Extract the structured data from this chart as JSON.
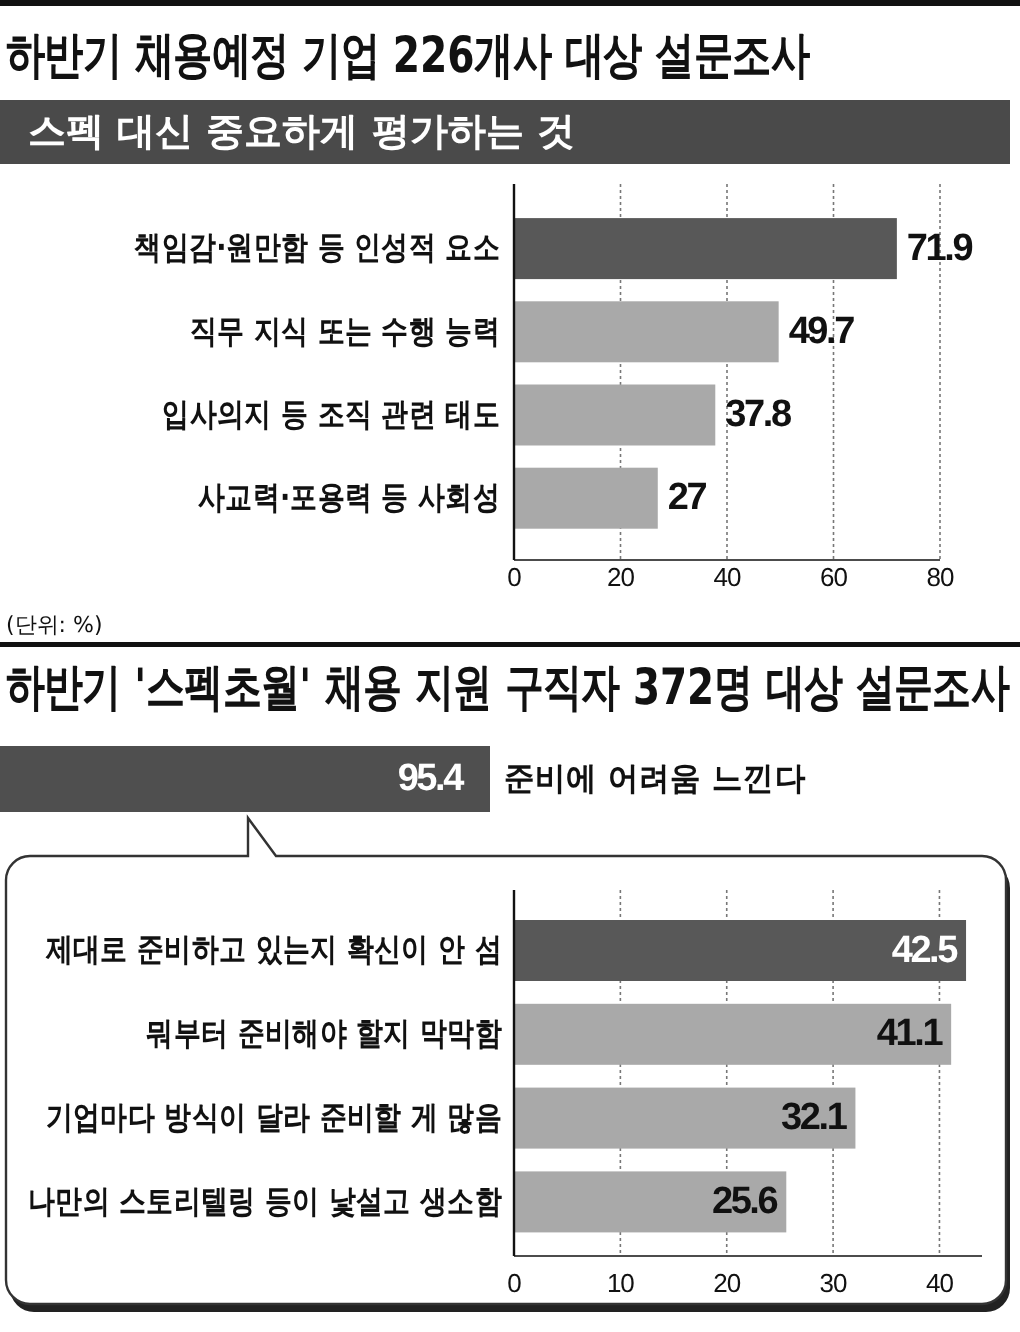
{
  "chart_data": [
    {
      "type": "bar",
      "title": "하반기 채용예정 기업 226개사 대상 설문조사",
      "subtitle": "스펙 대신 중요하게 평가하는 것",
      "orientation": "horizontal",
      "categories": [
        "책임감·원만함 등 인성적 요소",
        "직무 지식 또는 수행 능력",
        "입사의지 등 조직 관련 태도",
        "사교력·포용력 등 사회성"
      ],
      "values": [
        71.9,
        49.7,
        37.8,
        27
      ],
      "colors": [
        "#585858",
        "#a9a9a9",
        "#a9a9a9",
        "#a9a9a9"
      ],
      "xlim": [
        0,
        80
      ],
      "xticks": [
        0,
        20,
        40,
        60,
        80
      ],
      "grid": "x",
      "data_labels": true,
      "annotations": [
        "(단위: %)"
      ]
    },
    {
      "type": "bar",
      "title": "하반기 '스펙초월' 채용 지원 구직자 372명 대상 설문조사",
      "orientation": "horizontal",
      "categories": [
        "준비에 어려움 느낀다"
      ],
      "values": [
        95.4
      ],
      "color": "#4f4f4f",
      "data_labels": true
    },
    {
      "type": "bar",
      "orientation": "horizontal",
      "categories": [
        "제대로 준비하고 있는지 확신이 안 섬",
        "뭐부터 준비해야 할지 막막함",
        "기업마다 방식이 달라 준비할 게 많음",
        "나만의 스토리텔링 등이 낯설고 생소함"
      ],
      "values": [
        42.5,
        41.1,
        32.1,
        25.6
      ],
      "colors": [
        "#585858",
        "#a9a9a9",
        "#a9a9a9",
        "#a9a9a9"
      ],
      "xlim": [
        0,
        44
      ],
      "xticks": [
        0,
        10,
        20,
        30,
        40
      ],
      "grid": "x",
      "data_labels": true
    }
  ]
}
